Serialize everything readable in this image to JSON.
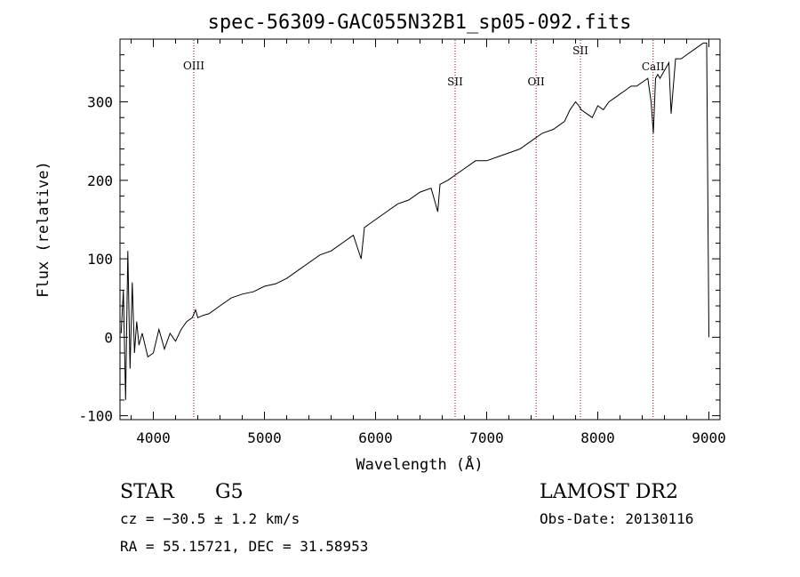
{
  "chart_data": {
    "type": "line",
    "title": "spec-56309-GAC055N32B1_sp05-092.fits",
    "xlabel": "Wavelength (Å)",
    "ylabel": "Flux (relative)",
    "xlim": [
      3700,
      9100
    ],
    "ylim": [
      -105,
      380
    ],
    "x_ticks": [
      4000,
      5000,
      6000,
      7000,
      8000,
      9000
    ],
    "y_ticks": [
      -100,
      0,
      100,
      200,
      300
    ],
    "line_color": "#000000",
    "marker_color": "#8b0000",
    "series": [
      {
        "x": [
          3710,
          3730,
          3750,
          3770,
          3790,
          3810,
          3830,
          3850,
          3870,
          3900,
          3950,
          4000,
          4050,
          4100,
          4150,
          4200,
          4250,
          4300,
          4350,
          4380,
          4400,
          4450,
          4500,
          4600,
          4700,
          4800,
          4900,
          5000,
          5100,
          5200,
          5300,
          5400,
          5500,
          5600,
          5700,
          5800,
          5870,
          5900,
          5950,
          6000,
          6100,
          6200,
          6300,
          6400,
          6500,
          6560,
          6580,
          6650,
          6700,
          6800,
          6850,
          6900,
          7000,
          7100,
          7200,
          7300,
          7400,
          7500,
          7600,
          7700,
          7750,
          7800,
          7830,
          7850,
          7900,
          7950,
          8000,
          8050,
          8100,
          8150,
          8200,
          8250,
          8300,
          8350,
          8400,
          8450,
          8480,
          8500,
          8520,
          8540,
          8560,
          8600,
          8640,
          8660,
          8700,
          8750,
          8800,
          8850,
          8900,
          8950,
          8980,
          9000
        ],
        "y": [
          5,
          60,
          -80,
          110,
          -40,
          70,
          -20,
          20,
          -10,
          5,
          -25,
          -20,
          10,
          -15,
          5,
          -5,
          10,
          20,
          25,
          35,
          25,
          28,
          30,
          40,
          50,
          55,
          58,
          65,
          68,
          75,
          85,
          95,
          105,
          110,
          120,
          130,
          100,
          140,
          145,
          150,
          160,
          170,
          175,
          185,
          190,
          160,
          195,
          200,
          205,
          215,
          220,
          225,
          225,
          230,
          235,
          240,
          250,
          260,
          265,
          275,
          290,
          300,
          295,
          290,
          285,
          280,
          295,
          290,
          300,
          305,
          310,
          315,
          320,
          320,
          325,
          330,
          300,
          260,
          330,
          335,
          330,
          340,
          350,
          285,
          355,
          355,
          360,
          365,
          370,
          375,
          375,
          0
        ]
      }
    ],
    "lines": [
      {
        "name": "OIII",
        "x": 4364
      },
      {
        "name": "SII",
        "x": 6716
      },
      {
        "name": "OII",
        "x": 7445
      },
      {
        "name": "SII",
        "x": 7844
      },
      {
        "name": "CaII",
        "x": 8498
      }
    ]
  },
  "info": {
    "object": "STAR",
    "subclass": "G5",
    "survey": "LAMOST DR2",
    "cz": "cz = −30.5 ± 1.2 km/s",
    "obs_date": "Obs-Date: 20130116",
    "coords": "RA =  55.15721, DEC =  31.58953"
  }
}
